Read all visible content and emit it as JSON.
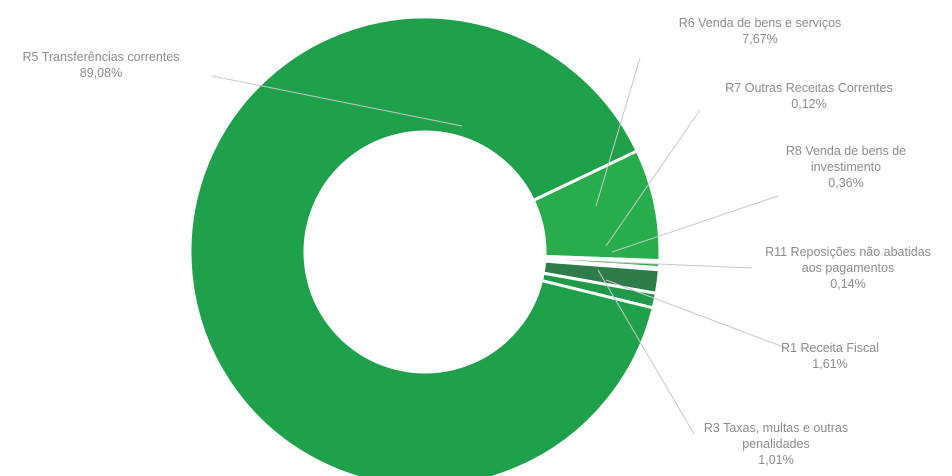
{
  "chart_data": {
    "type": "pie",
    "style": "donut",
    "slices": [
      {
        "name": "R6 Venda de bens e serviços",
        "value": 7.67,
        "label": "7,67%",
        "color": "#27ad4c"
      },
      {
        "name": "R7 Outras Receitas Correntes",
        "value": 0.12,
        "label": "0,12%",
        "color": "#2fae52"
      },
      {
        "name": "R8 Venda de bens de investimento",
        "value": 0.36,
        "label": "0,36%",
        "color": "#2fae52"
      },
      {
        "name": "R11 Reposições não abatidas aos pagamentos",
        "value": 0.14,
        "label": "0,14%",
        "color": "#d9ecd9"
      },
      {
        "name": "R1 Receita Fiscal",
        "value": 1.61,
        "label": "1,61%",
        "color": "#2e7c4a"
      },
      {
        "name": "R3 Taxas, multas e outras penalidades",
        "value": 1.01,
        "label": "1,01%",
        "color": "#1f9a48"
      },
      {
        "name": "R5 Transferências correntes",
        "value": 89.08,
        "label": "89,08%",
        "color": "#1fa04a"
      }
    ]
  },
  "labels": {
    "r5": {
      "name": "R5 Transferências correntes",
      "pct": "89,08%"
    },
    "r6": {
      "name": "R6 Venda de bens e serviços",
      "pct": "7,67%"
    },
    "r7": {
      "name": "R7 Outras Receitas Correntes",
      "pct": "0,12%"
    },
    "r8": {
      "name_line1": "R8 Venda de bens de",
      "name_line2": "investimento",
      "pct": "0,36%"
    },
    "r11": {
      "name_line1": "R11 Reposições não abatidas",
      "name_line2": "aos pagamentos",
      "pct": "0,14%"
    },
    "r1": {
      "name": "R1 Receita Fiscal",
      "pct": "1,61%"
    },
    "r3": {
      "name_line1": "R3 Taxas, multas e outras",
      "name_line2": "penalidades",
      "pct": "1,01%"
    }
  }
}
